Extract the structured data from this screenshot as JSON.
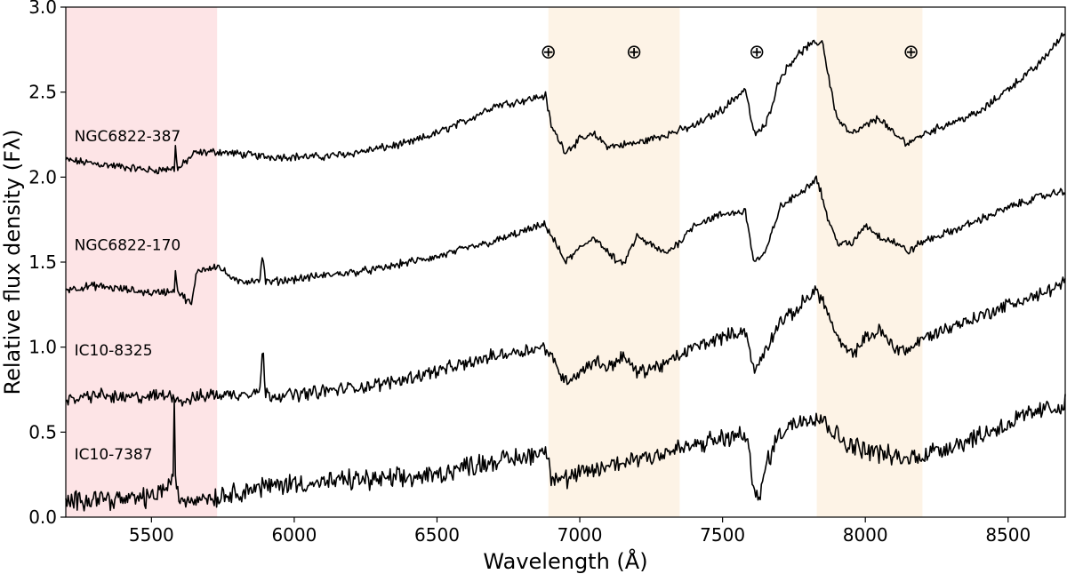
{
  "chart_data": {
    "type": "line",
    "xlabel": "Wavelength (Å)",
    "ylabel": "Relative flux density (Fλ)",
    "xlim": [
      5200,
      8700
    ],
    "ylim": [
      0.0,
      3.0
    ],
    "xticks": [
      5500,
      6000,
      6500,
      7000,
      7500,
      8000,
      8500
    ],
    "xtick_labels": [
      "5500",
      "6000",
      "6500",
      "7000",
      "7500",
      "8000",
      "8500"
    ],
    "yticks": [
      0.0,
      0.5,
      1.0,
      1.5,
      2.0,
      2.5,
      3.0
    ],
    "ytick_labels": [
      "0.0",
      "0.5",
      "1.0",
      "1.5",
      "2.0",
      "2.5",
      "3.0"
    ],
    "grid": false,
    "shaded_regions": [
      {
        "x0": 5200,
        "x1": 5730,
        "color": "#fde4e6"
      },
      {
        "x0": 6890,
        "x1": 7350,
        "color": "#fdf3e6"
      },
      {
        "x0": 7830,
        "x1": 8200,
        "color": "#fdf3e6"
      }
    ],
    "telluric_markers": {
      "symbol": "⊕",
      "x": [
        6890,
        7190,
        7620,
        8160
      ],
      "y": 2.73
    },
    "series": [
      {
        "name": "NGC6822-387",
        "label_anchor": [
          5230,
          2.21
        ],
        "color": "#000000",
        "points": [
          [
            5200,
            2.1
          ],
          [
            5300,
            2.08
          ],
          [
            5400,
            2.06
          ],
          [
            5500,
            2.04
          ],
          [
            5580,
            2.05
          ],
          [
            5585,
            2.22
          ],
          [
            5590,
            2.04
          ],
          [
            5650,
            2.14
          ],
          [
            5730,
            2.15
          ],
          [
            5900,
            2.12
          ],
          [
            6000,
            2.12
          ],
          [
            6100,
            2.12
          ],
          [
            6200,
            2.14
          ],
          [
            6300,
            2.17
          ],
          [
            6400,
            2.2
          ],
          [
            6500,
            2.26
          ],
          [
            6600,
            2.33
          ],
          [
            6700,
            2.42
          ],
          [
            6800,
            2.45
          ],
          [
            6880,
            2.48
          ],
          [
            6900,
            2.3
          ],
          [
            6950,
            2.15
          ],
          [
            7000,
            2.22
          ],
          [
            7050,
            2.25
          ],
          [
            7100,
            2.18
          ],
          [
            7200,
            2.2
          ],
          [
            7300,
            2.25
          ],
          [
            7400,
            2.3
          ],
          [
            7500,
            2.4
          ],
          [
            7580,
            2.52
          ],
          [
            7610,
            2.25
          ],
          [
            7650,
            2.3
          ],
          [
            7700,
            2.58
          ],
          [
            7750,
            2.7
          ],
          [
            7800,
            2.77
          ],
          [
            7850,
            2.8
          ],
          [
            7870,
            2.6
          ],
          [
            7900,
            2.35
          ],
          [
            7950,
            2.25
          ],
          [
            8000,
            2.3
          ],
          [
            8050,
            2.35
          ],
          [
            8100,
            2.25
          ],
          [
            8150,
            2.2
          ],
          [
            8200,
            2.25
          ],
          [
            8300,
            2.32
          ],
          [
            8400,
            2.38
          ],
          [
            8500,
            2.52
          ],
          [
            8600,
            2.65
          ],
          [
            8700,
            2.85
          ]
        ]
      },
      {
        "name": "NGC6822-170",
        "label_anchor": [
          5230,
          1.57
        ],
        "color": "#000000",
        "points": [
          [
            5200,
            1.34
          ],
          [
            5300,
            1.36
          ],
          [
            5400,
            1.34
          ],
          [
            5500,
            1.32
          ],
          [
            5580,
            1.33
          ],
          [
            5585,
            1.5
          ],
          [
            5590,
            1.33
          ],
          [
            5640,
            1.25
          ],
          [
            5660,
            1.45
          ],
          [
            5730,
            1.48
          ],
          [
            5800,
            1.38
          ],
          [
            5880,
            1.4
          ],
          [
            5890,
            1.55
          ],
          [
            5900,
            1.38
          ],
          [
            6000,
            1.4
          ],
          [
            6100,
            1.42
          ],
          [
            6200,
            1.44
          ],
          [
            6300,
            1.46
          ],
          [
            6400,
            1.5
          ],
          [
            6500,
            1.53
          ],
          [
            6600,
            1.58
          ],
          [
            6700,
            1.62
          ],
          [
            6800,
            1.68
          ],
          [
            6880,
            1.72
          ],
          [
            6950,
            1.5
          ],
          [
            7000,
            1.58
          ],
          [
            7050,
            1.65
          ],
          [
            7100,
            1.55
          ],
          [
            7150,
            1.48
          ],
          [
            7200,
            1.65
          ],
          [
            7300,
            1.55
          ],
          [
            7350,
            1.62
          ],
          [
            7400,
            1.72
          ],
          [
            7500,
            1.78
          ],
          [
            7580,
            1.8
          ],
          [
            7610,
            1.5
          ],
          [
            7650,
            1.55
          ],
          [
            7700,
            1.82
          ],
          [
            7750,
            1.88
          ],
          [
            7800,
            1.95
          ],
          [
            7830,
            2.0
          ],
          [
            7870,
            1.75
          ],
          [
            7900,
            1.62
          ],
          [
            7950,
            1.6
          ],
          [
            8000,
            1.72
          ],
          [
            8050,
            1.65
          ],
          [
            8100,
            1.62
          ],
          [
            8150,
            1.56
          ],
          [
            8200,
            1.62
          ],
          [
            8300,
            1.68
          ],
          [
            8400,
            1.75
          ],
          [
            8500,
            1.82
          ],
          [
            8600,
            1.88
          ],
          [
            8700,
            1.92
          ]
        ]
      },
      {
        "name": "IC10-8325",
        "label_anchor": [
          5230,
          0.95
        ],
        "color": "#000000",
        "points": [
          [
            5200,
            0.68
          ],
          [
            5300,
            0.72
          ],
          [
            5400,
            0.7
          ],
          [
            5500,
            0.71
          ],
          [
            5580,
            0.72
          ],
          [
            5600,
            0.68
          ],
          [
            5700,
            0.72
          ],
          [
            5800,
            0.72
          ],
          [
            5880,
            0.75
          ],
          [
            5890,
            1.0
          ],
          [
            5900,
            0.72
          ],
          [
            6000,
            0.72
          ],
          [
            6100,
            0.74
          ],
          [
            6200,
            0.76
          ],
          [
            6300,
            0.78
          ],
          [
            6400,
            0.82
          ],
          [
            6500,
            0.86
          ],
          [
            6600,
            0.9
          ],
          [
            6700,
            0.95
          ],
          [
            6800,
            0.98
          ],
          [
            6880,
            1.0
          ],
          [
            6950,
            0.8
          ],
          [
            7000,
            0.85
          ],
          [
            7050,
            0.92
          ],
          [
            7100,
            0.88
          ],
          [
            7150,
            0.95
          ],
          [
            7200,
            0.85
          ],
          [
            7300,
            0.9
          ],
          [
            7400,
            1.0
          ],
          [
            7500,
            1.06
          ],
          [
            7580,
            1.1
          ],
          [
            7610,
            0.85
          ],
          [
            7650,
            0.98
          ],
          [
            7700,
            1.15
          ],
          [
            7750,
            1.2
          ],
          [
            7800,
            1.3
          ],
          [
            7830,
            1.34
          ],
          [
            7870,
            1.2
          ],
          [
            7900,
            1.05
          ],
          [
            7950,
            0.95
          ],
          [
            8000,
            1.05
          ],
          [
            8050,
            1.1
          ],
          [
            8100,
            1.0
          ],
          [
            8150,
            0.98
          ],
          [
            8200,
            1.05
          ],
          [
            8300,
            1.12
          ],
          [
            8400,
            1.18
          ],
          [
            8500,
            1.25
          ],
          [
            8600,
            1.3
          ],
          [
            8700,
            1.38
          ]
        ]
      },
      {
        "name": "IC10-7387",
        "label_anchor": [
          5230,
          0.34
        ],
        "color": "#000000",
        "points": [
          [
            5200,
            0.08
          ],
          [
            5300,
            0.12
          ],
          [
            5400,
            0.1
          ],
          [
            5500,
            0.12
          ],
          [
            5575,
            0.2
          ],
          [
            5580,
            0.7
          ],
          [
            5585,
            0.15
          ],
          [
            5600,
            0.1
          ],
          [
            5700,
            0.12
          ],
          [
            5730,
            0.12
          ],
          [
            5800,
            0.15
          ],
          [
            5900,
            0.18
          ],
          [
            6000,
            0.2
          ],
          [
            6100,
            0.2
          ],
          [
            6200,
            0.22
          ],
          [
            6300,
            0.22
          ],
          [
            6400,
            0.23
          ],
          [
            6500,
            0.25
          ],
          [
            6600,
            0.3
          ],
          [
            6700,
            0.33
          ],
          [
            6800,
            0.35
          ],
          [
            6880,
            0.4
          ],
          [
            6900,
            0.25
          ],
          [
            6950,
            0.22
          ],
          [
            7000,
            0.25
          ],
          [
            7100,
            0.3
          ],
          [
            7200,
            0.35
          ],
          [
            7300,
            0.38
          ],
          [
            7400,
            0.42
          ],
          [
            7500,
            0.46
          ],
          [
            7580,
            0.48
          ],
          [
            7610,
            0.2
          ],
          [
            7630,
            0.08
          ],
          [
            7650,
            0.3
          ],
          [
            7700,
            0.5
          ],
          [
            7750,
            0.55
          ],
          [
            7800,
            0.6
          ],
          [
            7850,
            0.58
          ],
          [
            7900,
            0.48
          ],
          [
            7950,
            0.42
          ],
          [
            8000,
            0.4
          ],
          [
            8050,
            0.38
          ],
          [
            8100,
            0.35
          ],
          [
            8150,
            0.34
          ],
          [
            8200,
            0.37
          ],
          [
            8300,
            0.42
          ],
          [
            8400,
            0.48
          ],
          [
            8500,
            0.55
          ],
          [
            8600,
            0.62
          ],
          [
            8700,
            0.66
          ]
        ]
      }
    ]
  }
}
